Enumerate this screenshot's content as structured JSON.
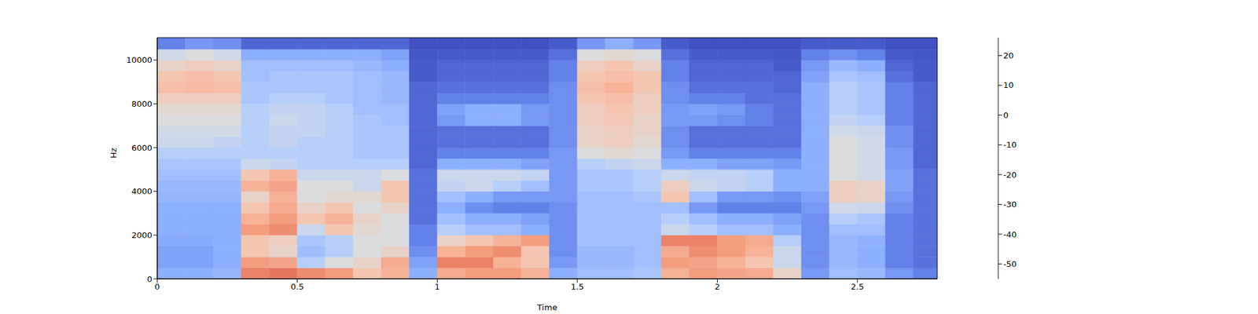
{
  "chart_data": {
    "type": "heatmap",
    "xlabel": "Time",
    "ylabel": "Hz",
    "xlim": [
      0,
      2.785
    ],
    "xticks": [
      0,
      0.5,
      1,
      1.5,
      2,
      2.5
    ],
    "ylim": [
      0,
      11025
    ],
    "yticks": [
      0,
      2000,
      4000,
      6000,
      8000,
      10000
    ],
    "cells": {
      "x_edges": [
        0,
        0.1,
        0.2,
        0.3,
        0.4,
        0.5,
        0.6,
        0.7,
        0.8,
        0.9,
        1.0,
        1.1,
        1.2,
        1.3,
        1.4,
        1.5,
        1.6,
        1.7,
        1.8,
        1.9,
        2.0,
        2.1,
        2.2,
        2.3,
        2.4,
        2.5,
        2.6,
        2.7,
        2.785
      ],
      "y_edges": [
        0,
        500,
        1000,
        1500,
        2000,
        2500,
        3000,
        3500,
        4000,
        4500,
        5000,
        5500,
        6000,
        6500,
        7000,
        7500,
        8000,
        8500,
        9000,
        9500,
        10000,
        10500,
        11025
      ],
      "values": [
        [
          -35,
          -35,
          -33,
          10,
          12,
          8,
          5,
          -5,
          0,
          -35,
          2,
          5,
          5,
          0,
          -35,
          -30,
          -30,
          -28,
          0,
          5,
          3,
          2,
          -10,
          -40,
          -30,
          -32,
          -40,
          -45
        ],
        [
          -38,
          -38,
          -35,
          5,
          3,
          -25,
          -15,
          -10,
          2,
          -38,
          10,
          10,
          0,
          -5,
          -40,
          -32,
          -32,
          -30,
          5,
          3,
          0,
          -5,
          -20,
          -42,
          -32,
          -35,
          -45,
          -48
        ],
        [
          -38,
          -38,
          -35,
          -5,
          -10,
          -30,
          -25,
          -15,
          -10,
          -42,
          0,
          5,
          8,
          -5,
          -42,
          -32,
          -32,
          -30,
          2,
          8,
          5,
          0,
          -20,
          -42,
          -32,
          -35,
          -45,
          -48
        ],
        [
          -36,
          -36,
          -35,
          -5,
          -8,
          -28,
          -25,
          -15,
          -15,
          -45,
          -10,
          -5,
          0,
          5,
          -42,
          -30,
          -30,
          -30,
          10,
          10,
          5,
          2,
          -25,
          -42,
          -32,
          -34,
          -45,
          -48
        ],
        [
          -35,
          -35,
          -35,
          5,
          8,
          -20,
          -5,
          -12,
          -15,
          -45,
          -25,
          -30,
          -30,
          -35,
          -42,
          -30,
          -30,
          -30,
          -20,
          -25,
          -30,
          -30,
          -35,
          -42,
          -30,
          -30,
          -45,
          -48
        ],
        [
          -35,
          -35,
          -35,
          0,
          5,
          -5,
          0,
          -10,
          -15,
          -48,
          -30,
          -35,
          -35,
          -38,
          -42,
          -30,
          -30,
          -30,
          -25,
          -30,
          -35,
          -35,
          -38,
          -42,
          -25,
          -28,
          -45,
          -48
        ],
        [
          -35,
          -35,
          -35,
          -5,
          2,
          -10,
          -5,
          -15,
          -10,
          -48,
          -35,
          -42,
          -45,
          -45,
          -42,
          -30,
          -30,
          -30,
          -30,
          -40,
          -45,
          -45,
          -45,
          -40,
          -18,
          -20,
          -42,
          -48
        ],
        [
          -33,
          -33,
          -33,
          -10,
          0,
          -15,
          -12,
          -12,
          -5,
          -48,
          -30,
          -35,
          -40,
          -40,
          -40,
          -30,
          -30,
          -28,
          -5,
          -30,
          -40,
          -40,
          -42,
          -38,
          -8,
          -10,
          -40,
          -48
        ],
        [
          -32,
          -32,
          -32,
          0,
          3,
          -15,
          -15,
          -20,
          -5,
          -48,
          -22,
          -20,
          -25,
          -30,
          -40,
          -28,
          -28,
          -25,
          -8,
          -20,
          -22,
          -25,
          -35,
          -35,
          -8,
          -10,
          -38,
          -48
        ],
        [
          -30,
          -30,
          -30,
          -5,
          0,
          -20,
          -20,
          -20,
          -15,
          -48,
          -20,
          -20,
          -20,
          -22,
          -40,
          -28,
          -28,
          -25,
          -20,
          -22,
          -22,
          -25,
          -35,
          -35,
          -15,
          -18,
          -38,
          -48
        ],
        [
          -28,
          -28,
          -28,
          -20,
          -22,
          -25,
          -25,
          -25,
          -25,
          -50,
          -35,
          -35,
          -35,
          -38,
          -40,
          -25,
          -22,
          -20,
          -35,
          -35,
          -38,
          -38,
          -40,
          -35,
          -15,
          -18,
          -40,
          -50
        ],
        [
          -25,
          -25,
          -25,
          -25,
          -25,
          -25,
          -25,
          -28,
          -28,
          -50,
          -45,
          -45,
          -45,
          -45,
          -40,
          -15,
          -12,
          -15,
          -40,
          -45,
          -45,
          -45,
          -45,
          -35,
          -15,
          -18,
          -40,
          -50
        ],
        [
          -20,
          -20,
          -22,
          -25,
          -22,
          -25,
          -25,
          -28,
          -28,
          -50,
          -48,
          -48,
          -48,
          -48,
          -42,
          -10,
          -8,
          -12,
          -42,
          -48,
          -48,
          -48,
          -48,
          -35,
          -15,
          -18,
          -42,
          -50
        ],
        [
          -18,
          -18,
          -18,
          -25,
          -22,
          -22,
          -25,
          -28,
          -28,
          -50,
          -48,
          -48,
          -48,
          -48,
          -42,
          -10,
          -8,
          -10,
          -42,
          -48,
          -48,
          -48,
          -48,
          -35,
          -18,
          -20,
          -42,
          -50
        ],
        [
          -15,
          -15,
          -15,
          -25,
          -20,
          -22,
          -25,
          -28,
          -30,
          -50,
          -40,
          -35,
          -35,
          -40,
          -42,
          -8,
          -6,
          -10,
          -40,
          -40,
          -42,
          -45,
          -48,
          -35,
          -22,
          -25,
          -45,
          -50
        ],
        [
          -12,
          -12,
          -12,
          -25,
          -22,
          -22,
          -25,
          -30,
          -30,
          -50,
          -38,
          -35,
          -35,
          -40,
          -42,
          -8,
          -5,
          -8,
          -40,
          -38,
          -40,
          -45,
          -48,
          -35,
          -25,
          -28,
          -45,
          -50
        ],
        [
          -8,
          -8,
          -8,
          -28,
          -25,
          -25,
          -28,
          -30,
          -32,
          -50,
          -45,
          -45,
          -45,
          -45,
          -42,
          -5,
          -3,
          -8,
          -42,
          -45,
          -45,
          -48,
          -48,
          -35,
          -25,
          -28,
          -45,
          -50
        ],
        [
          -3,
          -2,
          -3,
          -28,
          -28,
          -28,
          -28,
          -30,
          -32,
          -50,
          -48,
          -48,
          -48,
          -48,
          -42,
          -3,
          0,
          -5,
          -42,
          -48,
          -48,
          -48,
          -50,
          -35,
          -25,
          -28,
          -45,
          -50
        ],
        [
          -5,
          -3,
          -5,
          -30,
          -28,
          -28,
          -28,
          -30,
          -32,
          -52,
          -50,
          -50,
          -50,
          -50,
          -45,
          -5,
          -3,
          -5,
          -45,
          -50,
          -50,
          -50,
          -50,
          -38,
          -28,
          -30,
          -48,
          -52
        ],
        [
          -10,
          -8,
          -10,
          -30,
          -30,
          -30,
          -30,
          -32,
          -35,
          -52,
          -50,
          -50,
          -50,
          -50,
          -45,
          -8,
          -5,
          -10,
          -45,
          -50,
          -50,
          -50,
          -52,
          -40,
          -32,
          -35,
          -50,
          -52
        ],
        [
          -18,
          -15,
          -18,
          -35,
          -35,
          -35,
          -35,
          -35,
          -38,
          -53,
          -52,
          -52,
          -52,
          -52,
          -48,
          -15,
          -12,
          -15,
          -48,
          -52,
          -52,
          -52,
          -53,
          -45,
          -42,
          -45,
          -52,
          -53
        ],
        [
          -45,
          -40,
          -42,
          -50,
          -50,
          -50,
          -50,
          -50,
          -50,
          -54,
          -54,
          -54,
          -54,
          -54,
          -52,
          -40,
          -35,
          -40,
          -52,
          -54,
          -54,
          -54,
          -54,
          -52,
          -52,
          -52,
          -54,
          -54
        ]
      ]
    },
    "colorbar": {
      "range": [
        -55,
        26
      ],
      "ticks": [
        -50,
        -40,
        -30,
        -20,
        -10,
        0,
        10,
        20
      ]
    }
  }
}
